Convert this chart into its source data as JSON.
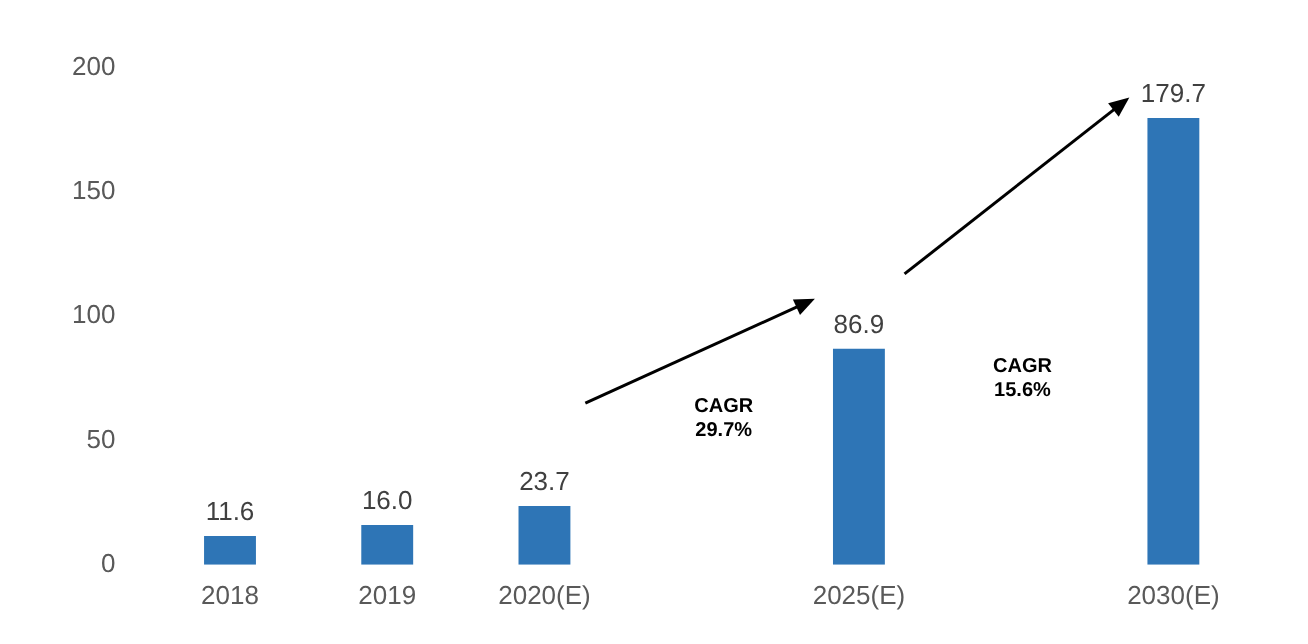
{
  "chart_data": {
    "type": "bar",
    "categories": [
      "2018",
      "2019",
      "2020(E)",
      null,
      "2025(E)",
      null,
      "2030(E)"
    ],
    "values": [
      11.6,
      16.0,
      23.7,
      null,
      86.9,
      null,
      179.7
    ],
    "value_labels": [
      "11.6",
      "16.0",
      "23.7",
      null,
      "86.9",
      null,
      "179.7"
    ],
    "color": "#2e75b6",
    "ylim": [
      0,
      200
    ],
    "yticks": [
      0,
      50,
      100,
      150,
      200
    ],
    "grid": false,
    "legend": false,
    "annotations": [
      "CAGR 29.7%",
      "CAGR 15.6%"
    ]
  }
}
